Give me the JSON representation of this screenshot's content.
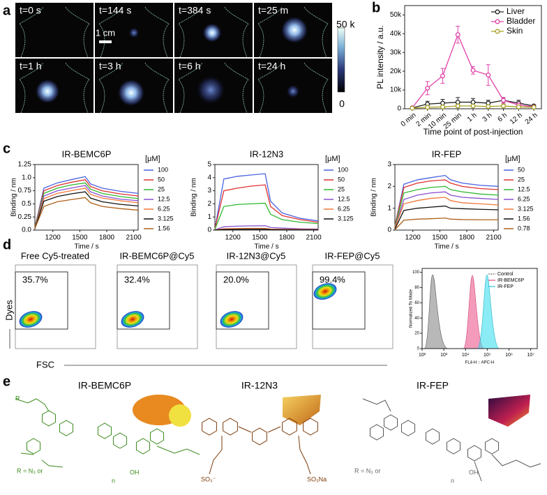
{
  "panel_labels": [
    "a",
    "b",
    "c",
    "d",
    "e"
  ],
  "imaging": {
    "time_labels": [
      "t=0 s",
      "t=144 s",
      "t=384 s",
      "t=25 m",
      "t=1 h",
      "t=3 h",
      "t=6 h",
      "t=24 h"
    ],
    "scale_bar": "1 cm",
    "colorbar_labels": [
      "50 k",
      "0"
    ]
  },
  "chart_data": [
    {
      "type": "line",
      "categories": [
        "0 min",
        "2 min",
        "10 min",
        "25 min",
        "1 h",
        "3 h",
        "6 h",
        "12 h",
        "24 h"
      ],
      "ylabel": "PL intensity / a.u.",
      "xlabel": "Time point of post-injection",
      "ylim": [
        0,
        55000
      ],
      "yticks": [
        0,
        {
          "value": 10000,
          "label": "10k"
        },
        {
          "value": 20000,
          "label": "20k"
        },
        {
          "value": 30000,
          "label": "30k"
        },
        {
          "value": 40000,
          "label": "40k"
        },
        {
          "value": 50000,
          "label": "50k"
        }
      ],
      "legend": "upper right",
      "series": [
        {
          "name": "Liver",
          "color": "#222222",
          "values": [
            500,
            2500,
            3000,
            3500,
            3500,
            3000,
            4500,
            3000,
            1500
          ],
          "errors": [
            300,
            1500,
            2000,
            2500,
            2000,
            1500,
            1500,
            1500,
            500
          ]
        },
        {
          "name": "Bladder",
          "color": "#e040a8",
          "values": [
            500,
            11000,
            17500,
            39500,
            20500,
            18000,
            4500,
            2000,
            1000
          ],
          "errors": [
            500,
            3500,
            4000,
            4500,
            2000,
            5500,
            1500,
            1000,
            500
          ]
        },
        {
          "name": "Skin",
          "color": "#a8a020",
          "values": [
            300,
            800,
            1000,
            1500,
            1500,
            1200,
            1500,
            1000,
            800
          ],
          "errors": [
            200,
            500,
            600,
            800,
            700,
            600,
            800,
            500,
            300
          ]
        }
      ]
    },
    {
      "type": "line",
      "title": "IR-BEMC6P",
      "xlabel": "Time / s",
      "ylabel": "Binding / nm",
      "legend_title": "[μM]",
      "x": [
        1000,
        1100,
        1250,
        1400,
        1560,
        1620,
        1750,
        1950,
        2150
      ],
      "xlim": [
        1000,
        2150
      ],
      "xticks": [
        1200,
        1500,
        1800,
        2100
      ],
      "ylim": [
        0,
        1.25
      ],
      "yticks": [
        {
          "value": 0,
          "label": "0.0"
        },
        0.25,
        0.5,
        0.75,
        {
          "value": 1,
          "label": "1.0"
        },
        1.25
      ],
      "series": [
        {
          "name": "100",
          "color": "#4a62e0",
          "values": [
            0.05,
            0.8,
            0.9,
            0.96,
            1.02,
            0.88,
            0.8,
            0.74,
            0.7
          ]
        },
        {
          "name": "50",
          "color": "#e03030",
          "values": [
            0.05,
            0.75,
            0.85,
            0.91,
            0.96,
            0.83,
            0.75,
            0.69,
            0.65
          ]
        },
        {
          "name": "25",
          "color": "#30b830",
          "values": [
            0.05,
            0.7,
            0.8,
            0.86,
            0.9,
            0.78,
            0.7,
            0.64,
            0.6
          ]
        },
        {
          "name": "12.5",
          "color": "#8a50d0",
          "values": [
            0.04,
            0.65,
            0.75,
            0.8,
            0.85,
            0.73,
            0.65,
            0.59,
            0.56
          ]
        },
        {
          "name": "6.25",
          "color": "#f07838",
          "values": [
            0.04,
            0.6,
            0.7,
            0.75,
            0.8,
            0.68,
            0.61,
            0.56,
            0.52
          ]
        },
        {
          "name": "3.125",
          "color": "#111111",
          "values": [
            0.03,
            0.55,
            0.64,
            0.69,
            0.73,
            0.61,
            0.54,
            0.49,
            0.46
          ]
        },
        {
          "name": "1.56",
          "color": "#b06018",
          "values": [
            0.03,
            0.45,
            0.54,
            0.58,
            0.62,
            0.52,
            0.45,
            0.41,
            0.38
          ]
        }
      ]
    },
    {
      "type": "line",
      "title": "IR-12N3",
      "xlabel": "Time / s",
      "ylabel": "Binding / nm",
      "legend_title": "[μM]",
      "x": [
        1000,
        1100,
        1250,
        1400,
        1560,
        1620,
        1750,
        1950,
        2150
      ],
      "xlim": [
        1000,
        2150
      ],
      "xticks": [
        1200,
        1500,
        1800,
        2100
      ],
      "ylim": [
        0,
        5
      ],
      "yticks": [
        0,
        1,
        2,
        3,
        4,
        5
      ],
      "series": [
        {
          "name": "100",
          "color": "#4a62e0",
          "values": [
            0.1,
            3.9,
            4.1,
            4.2,
            4.3,
            2.2,
            1.3,
            0.9,
            0.7
          ]
        },
        {
          "name": "50",
          "color": "#e03030",
          "values": [
            0.1,
            3.0,
            3.2,
            3.35,
            3.45,
            1.8,
            1.1,
            0.8,
            0.6
          ]
        },
        {
          "name": "25",
          "color": "#30b830",
          "values": [
            0.05,
            1.8,
            1.95,
            2.0,
            2.05,
            1.2,
            0.8,
            0.6,
            0.5
          ]
        },
        {
          "name": "12.5",
          "color": "#8a50d0",
          "values": [
            0.02,
            0.25,
            0.3,
            0.32,
            0.33,
            0.2,
            0.15,
            0.1,
            0.08
          ]
        },
        {
          "name": "6.25",
          "color": "#f07838",
          "values": [
            0.01,
            0.1,
            0.12,
            0.13,
            0.13,
            0.08,
            0.06,
            0.05,
            0.04
          ]
        },
        {
          "name": "3.125",
          "color": "#111111",
          "values": [
            0,
            0.05,
            0.06,
            0.07,
            0.07,
            0.04,
            0.03,
            0.02,
            0.02
          ]
        }
      ]
    },
    {
      "type": "line",
      "title": "IR-FEP",
      "xlabel": "Time / s",
      "ylabel": "Binding / nm",
      "legend_title": "[μM]",
      "x": [
        1000,
        1100,
        1250,
        1400,
        1560,
        1620,
        1750,
        1950,
        2150
      ],
      "xlim": [
        1000,
        2150
      ],
      "xticks": [
        1200,
        1500,
        1800,
        2100
      ],
      "ylim": [
        0,
        3
      ],
      "yticks": [
        0,
        1,
        2,
        3
      ],
      "series": [
        {
          "name": "50",
          "color": "#4a62e0",
          "values": [
            0.2,
            2.1,
            2.3,
            2.4,
            2.5,
            2.3,
            2.15,
            2.05,
            2.0
          ]
        },
        {
          "name": "25",
          "color": "#e03030",
          "values": [
            0.2,
            1.95,
            2.15,
            2.25,
            2.3,
            2.15,
            2.0,
            1.9,
            1.85
          ]
        },
        {
          "name": "12.5",
          "color": "#30b830",
          "values": [
            0.15,
            1.7,
            1.85,
            1.95,
            2.0,
            1.85,
            1.75,
            1.65,
            1.6
          ]
        },
        {
          "name": "6.25",
          "color": "#8a50d0",
          "values": [
            0.1,
            1.4,
            1.6,
            1.7,
            1.75,
            1.6,
            1.5,
            1.45,
            1.4
          ]
        },
        {
          "name": "3.125",
          "color": "#f07838",
          "values": [
            0.1,
            1.2,
            1.35,
            1.45,
            1.5,
            1.35,
            1.25,
            1.2,
            1.15
          ]
        },
        {
          "name": "1.56",
          "color": "#111111",
          "values": [
            0.05,
            0.9,
            1.0,
            1.05,
            1.1,
            1.0,
            0.98,
            0.95,
            0.93
          ]
        },
        {
          "name": "0.78",
          "color": "#b06018",
          "values": [
            0.02,
            0.45,
            0.5,
            0.52,
            0.55,
            0.5,
            0.48,
            0.47,
            0.47
          ]
        }
      ]
    }
  ],
  "flow": {
    "titles": [
      "Free Cy5-treated",
      "IR-BEMC6P@Cy5",
      "IR-12N3@Cy5",
      "IR-FEP@Cy5"
    ],
    "gate_percentages": [
      "35.7%",
      "32.4%",
      "20.0%",
      "99.4%"
    ],
    "y_label": "Dyes",
    "x_label": "FSC"
  },
  "histogram": {
    "legend": [
      "Control",
      "IR-BEMC6P",
      "IR-FEP"
    ],
    "y_label": "Normalized To Mode",
    "x_label": "FL4-H :: APC-H",
    "log_x": true,
    "ylim": [
      0,
      105
    ],
    "yticks": [
      0,
      20,
      40,
      60,
      80,
      100
    ],
    "xlim": [
      100,
      20000000
    ],
    "xticks": [
      {
        "value": 100,
        "label": "10²"
      },
      {
        "value": 1000,
        "label": "10³"
      },
      {
        "value": 10000,
        "label": "10⁴"
      },
      {
        "value": 100000,
        "label": "10⁵"
      },
      {
        "value": 1000000,
        "label": "10⁶"
      },
      {
        "value": 10000000,
        "label": "10⁷"
      }
    ]
  },
  "structures": {
    "names": [
      "IR-BEMC6P",
      "IR-12N3",
      "IR-FEP"
    ],
    "substituents": [
      "R = N₃ or",
      "R = N₃ or"
    ],
    "groups": [
      "OH",
      "OH",
      "n",
      "n",
      "SO₃⁻",
      "SO₃Na",
      "R"
    ]
  }
}
